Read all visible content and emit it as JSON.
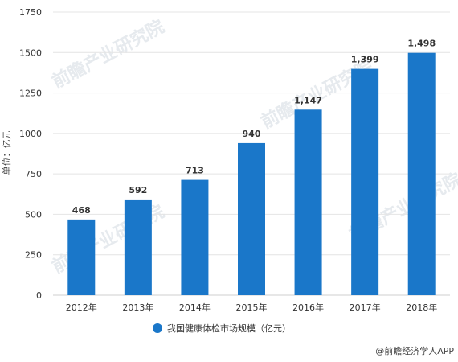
{
  "chart_data": {
    "type": "bar",
    "categories": [
      "2012年",
      "2013年",
      "2014年",
      "2015年",
      "2016年",
      "2017年",
      "2018年"
    ],
    "series": [
      {
        "name": "我国健康体检市场规模（亿元）",
        "values": [
          468,
          592,
          713,
          940,
          1147,
          1399,
          1498
        ],
        "labels": [
          "468",
          "592",
          "713",
          "940",
          "1,147",
          "1,399",
          "1,498"
        ],
        "color": "#1a77c9"
      }
    ],
    "y_ticks": [
      "0",
      "250",
      "500",
      "750",
      "1000",
      "1250",
      "1500",
      "1750"
    ],
    "ylabel": "单位：亿元",
    "ylim": [
      0,
      1750
    ],
    "grid": true,
    "legend_position": "bottom-center"
  },
  "source": {
    "label": "@前瞻经济学人APP",
    "icon": "at-icon"
  },
  "watermark": {
    "text": "前瞻产业研究院"
  }
}
